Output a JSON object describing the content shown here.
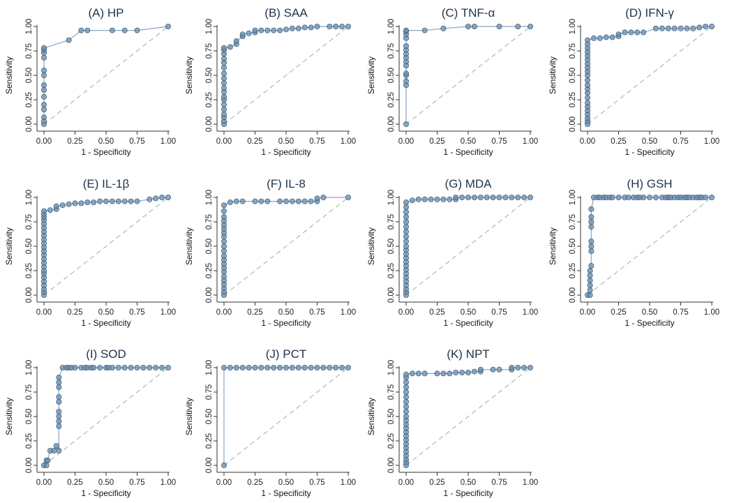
{
  "style": {
    "line_color": "#8aa5bf",
    "marker_fill": "#6b8fae",
    "marker_edge": "#3f5f7f",
    "diagonal_color": "#8fbfaa",
    "title_color": "#1f3349"
  },
  "chart_data": [
    {
      "type": "line",
      "title": "(A) HP",
      "xlabel": "1 - Specificity",
      "ylabel": "Sensitivity",
      "xlim": [
        0,
        1
      ],
      "ylim": [
        0,
        1
      ],
      "xticks": [
        "0.00",
        "0.25",
        "0.50",
        "0.75",
        "1.00"
      ],
      "yticks": [
        "0.00",
        "0.25",
        "0.50",
        "0.75",
        "1.00"
      ],
      "x": [
        0,
        0,
        0,
        0,
        0,
        0,
        0,
        0,
        0,
        0,
        0,
        0,
        0,
        0,
        0.2,
        0.3,
        0.35,
        0.55,
        0.65,
        0.75,
        1.0
      ],
      "y": [
        0,
        0.03,
        0.07,
        0.15,
        0.2,
        0.28,
        0.35,
        0.4,
        0.5,
        0.55,
        0.68,
        0.73,
        0.76,
        0.78,
        0.86,
        0.96,
        0.96,
        0.96,
        0.96,
        0.96,
        1.0
      ]
    },
    {
      "type": "line",
      "title": "(B) SAA",
      "xlabel": "1 - Specificity",
      "ylabel": "Sensitivity",
      "xlim": [
        0,
        1
      ],
      "ylim": [
        0,
        1
      ],
      "xticks": [
        "0.00",
        "0.25",
        "0.50",
        "0.75",
        "1.00"
      ],
      "yticks": [
        "0.00",
        "0.25",
        "0.50",
        "0.75",
        "1.00"
      ],
      "x": [
        0,
        0,
        0,
        0,
        0,
        0,
        0,
        0,
        0,
        0,
        0,
        0,
        0,
        0,
        0,
        0,
        0,
        0,
        0,
        0.05,
        0.1,
        0.1,
        0.15,
        0.15,
        0.2,
        0.25,
        0.25,
        0.3,
        0.35,
        0.4,
        0.45,
        0.5,
        0.55,
        0.6,
        0.65,
        0.7,
        0.75,
        0.85,
        0.9,
        0.95,
        1.0
      ],
      "y": [
        0,
        0.03,
        0.07,
        0.1,
        0.15,
        0.2,
        0.25,
        0.28,
        0.33,
        0.37,
        0.42,
        0.47,
        0.52,
        0.58,
        0.63,
        0.67,
        0.72,
        0.76,
        0.78,
        0.79,
        0.82,
        0.85,
        0.9,
        0.92,
        0.93,
        0.94,
        0.96,
        0.96,
        0.96,
        0.96,
        0.96,
        0.97,
        0.98,
        0.98,
        0.99,
        0.99,
        1.0,
        1.0,
        1.0,
        1.0,
        1.0
      ]
    },
    {
      "type": "line",
      "title": "(C) TNF-α",
      "xlabel": "1 - Specificity",
      "ylabel": "Sensitivity",
      "xlim": [
        0,
        1
      ],
      "ylim": [
        0,
        1
      ],
      "xticks": [
        "0.00",
        "0.25",
        "0.50",
        "0.75",
        "1.00"
      ],
      "yticks": [
        "0.00",
        "0.25",
        "0.50",
        "0.75",
        "1.00"
      ],
      "x": [
        0,
        0,
        0,
        0,
        0,
        0,
        0,
        0,
        0,
        0,
        0,
        0,
        0,
        0,
        0,
        0.15,
        0.3,
        0.5,
        0.55,
        0.75,
        0.9,
        1.0
      ],
      "y": [
        0,
        0.4,
        0.44,
        0.5,
        0.52,
        0.6,
        0.64,
        0.68,
        0.72,
        0.76,
        0.8,
        0.88,
        0.92,
        0.95,
        0.96,
        0.96,
        0.98,
        1.0,
        1.0,
        1.0,
        1.0,
        1.0
      ]
    },
    {
      "type": "line",
      "title": "(D) IFN-γ",
      "xlabel": "1 - Specificity",
      "ylabel": "Sensitivity",
      "xlim": [
        0,
        1
      ],
      "ylim": [
        0,
        1
      ],
      "xticks": [
        "0.00",
        "0.25",
        "0.50",
        "0.75",
        "1.00"
      ],
      "yticks": [
        "0.00",
        "0.25",
        "0.50",
        "0.75",
        "1.00"
      ],
      "x": [
        0,
        0,
        0,
        0,
        0,
        0,
        0,
        0,
        0,
        0,
        0,
        0,
        0,
        0,
        0,
        0,
        0,
        0,
        0,
        0,
        0,
        0,
        0.05,
        0.1,
        0.15,
        0.2,
        0.25,
        0.25,
        0.3,
        0.35,
        0.4,
        0.45,
        0.55,
        0.6,
        0.65,
        0.7,
        0.75,
        0.8,
        0.85,
        0.9,
        0.95,
        1.0
      ],
      "y": [
        0,
        0.03,
        0.06,
        0.1,
        0.14,
        0.18,
        0.22,
        0.27,
        0.32,
        0.36,
        0.4,
        0.45,
        0.5,
        0.54,
        0.58,
        0.62,
        0.66,
        0.7,
        0.74,
        0.78,
        0.82,
        0.86,
        0.88,
        0.88,
        0.89,
        0.89,
        0.9,
        0.92,
        0.94,
        0.94,
        0.94,
        0.94,
        0.98,
        0.98,
        0.98,
        0.98,
        0.98,
        0.98,
        0.98,
        0.99,
        1.0,
        1.0
      ]
    },
    {
      "type": "line",
      "title": "(E) IL-1β",
      "xlabel": "1 - Specificity",
      "ylabel": "Sensitivity",
      "xlim": [
        0,
        1
      ],
      "ylim": [
        0,
        1
      ],
      "xticks": [
        "0.00",
        "0.25",
        "0.50",
        "0.75",
        "1.00"
      ],
      "yticks": [
        "0.00",
        "0.25",
        "0.50",
        "0.75",
        "1.00"
      ],
      "x": [
        0,
        0,
        0,
        0,
        0,
        0,
        0,
        0,
        0,
        0,
        0,
        0,
        0,
        0,
        0,
        0,
        0,
        0,
        0,
        0,
        0,
        0,
        0,
        0,
        0.05,
        0.1,
        0.1,
        0.15,
        0.2,
        0.25,
        0.3,
        0.35,
        0.4,
        0.45,
        0.5,
        0.55,
        0.6,
        0.65,
        0.7,
        0.75,
        0.85,
        0.9,
        0.95,
        1.0
      ],
      "y": [
        0,
        0.03,
        0.06,
        0.1,
        0.14,
        0.18,
        0.22,
        0.25,
        0.29,
        0.33,
        0.37,
        0.41,
        0.45,
        0.49,
        0.53,
        0.57,
        0.61,
        0.65,
        0.69,
        0.73,
        0.77,
        0.8,
        0.83,
        0.86,
        0.87,
        0.88,
        0.91,
        0.92,
        0.93,
        0.94,
        0.94,
        0.95,
        0.95,
        0.96,
        0.96,
        0.96,
        0.96,
        0.96,
        0.96,
        0.96,
        0.98,
        0.99,
        1.0,
        1.0
      ]
    },
    {
      "type": "line",
      "title": "(F) IL-8",
      "xlabel": "1 - Specificity",
      "ylabel": "Sensitivity",
      "xlim": [
        0,
        1
      ],
      "ylim": [
        0,
        1
      ],
      "xticks": [
        "0.00",
        "0.25",
        "0.50",
        "0.75",
        "1.00"
      ],
      "yticks": [
        "0.00",
        "0.25",
        "0.50",
        "0.75",
        "1.00"
      ],
      "x": [
        0,
        0,
        0,
        0,
        0,
        0,
        0,
        0,
        0,
        0,
        0,
        0,
        0,
        0,
        0,
        0,
        0,
        0,
        0,
        0,
        0,
        0,
        0.05,
        0.1,
        0.15,
        0.25,
        0.3,
        0.35,
        0.45,
        0.5,
        0.55,
        0.6,
        0.65,
        0.7,
        0.75,
        0.75,
        0.8,
        1.0
      ],
      "y": [
        0,
        0.03,
        0.07,
        0.11,
        0.15,
        0.19,
        0.24,
        0.28,
        0.32,
        0.36,
        0.4,
        0.45,
        0.5,
        0.55,
        0.6,
        0.64,
        0.68,
        0.72,
        0.76,
        0.8,
        0.86,
        0.92,
        0.95,
        0.96,
        0.96,
        0.96,
        0.96,
        0.96,
        0.96,
        0.96,
        0.96,
        0.96,
        0.96,
        0.96,
        0.96,
        0.99,
        1.0,
        1.0
      ]
    },
    {
      "type": "line",
      "title": "(G) MDA",
      "xlabel": "1 - Specificity",
      "ylabel": "Sensitivity",
      "xlim": [
        0,
        1
      ],
      "ylim": [
        0,
        1
      ],
      "xticks": [
        "0.00",
        "0.25",
        "0.50",
        "0.75",
        "1.00"
      ],
      "yticks": [
        "0.00",
        "0.25",
        "0.50",
        "0.75",
        "1.00"
      ],
      "x": [
        0,
        0,
        0,
        0,
        0,
        0,
        0,
        0,
        0,
        0,
        0,
        0,
        0,
        0,
        0,
        0,
        0,
        0,
        0,
        0,
        0,
        0,
        0,
        0.05,
        0.1,
        0.15,
        0.2,
        0.25,
        0.3,
        0.35,
        0.4,
        0.4,
        0.45,
        0.5,
        0.55,
        0.6,
        0.65,
        0.7,
        0.75,
        0.8,
        0.85,
        0.9,
        0.95,
        1.0
      ],
      "y": [
        0,
        0.03,
        0.06,
        0.1,
        0.14,
        0.18,
        0.22,
        0.26,
        0.3,
        0.34,
        0.38,
        0.42,
        0.46,
        0.5,
        0.55,
        0.6,
        0.65,
        0.7,
        0.75,
        0.8,
        0.85,
        0.9,
        0.95,
        0.97,
        0.98,
        0.98,
        0.98,
        0.98,
        0.98,
        0.98,
        0.98,
        1.0,
        1.0,
        1.0,
        1.0,
        1.0,
        1.0,
        1.0,
        1.0,
        1.0,
        1.0,
        1.0,
        1.0,
        1.0
      ]
    },
    {
      "type": "line",
      "title": "(H) GSH",
      "xlabel": "1 - Specificity",
      "ylabel": "Sensitivity",
      "xlim": [
        0,
        1
      ],
      "ylim": [
        0,
        1
      ],
      "xticks": [
        "0.00",
        "0.25",
        "0.50",
        "0.75",
        "1.00"
      ],
      "yticks": [
        "0.00",
        "0.25",
        "0.50",
        "0.75",
        "1.00"
      ],
      "x": [
        0,
        0.02,
        0.02,
        0.02,
        0.02,
        0.02,
        0.02,
        0.03,
        0.03,
        0.03,
        0.03,
        0.03,
        0.03,
        0.03,
        0.03,
        0.05,
        0.08,
        0.1,
        0.13,
        0.15,
        0.18,
        0.2,
        0.25,
        0.3,
        0.33,
        0.37,
        0.4,
        0.42,
        0.45,
        0.5,
        0.55,
        0.6,
        0.63,
        0.65,
        0.67,
        0.7,
        0.73,
        0.75,
        0.78,
        0.8,
        0.82,
        0.85,
        0.88,
        0.9,
        0.92,
        0.95,
        1.0
      ],
      "y": [
        0,
        0,
        0.05,
        0.1,
        0.15,
        0.2,
        0.25,
        0.3,
        0.45,
        0.5,
        0.55,
        0.7,
        0.75,
        0.8,
        0.88,
        1.0,
        1.0,
        1.0,
        1.0,
        1.0,
        1.0,
        1.0,
        1.0,
        1.0,
        1.0,
        1.0,
        1.0,
        1.0,
        1.0,
        1.0,
        1.0,
        1.0,
        1.0,
        1.0,
        1.0,
        1.0,
        1.0,
        1.0,
        1.0,
        1.0,
        1.0,
        1.0,
        1.0,
        1.0,
        1.0,
        1.0,
        1.0
      ]
    },
    {
      "type": "line",
      "title": "(I) SOD",
      "xlabel": "1 - Specificity",
      "ylabel": "Sensitivity",
      "xlim": [
        0,
        1
      ],
      "ylim": [
        0,
        1
      ],
      "xticks": [
        "0.00",
        "0.25",
        "0.50",
        "0.75",
        "1.00"
      ],
      "yticks": [
        "0.00",
        "0.25",
        "0.50",
        "0.75",
        "1.00"
      ],
      "x": [
        0,
        0.02,
        0.02,
        0.03,
        0.05,
        0.08,
        0.1,
        0.12,
        0.12,
        0.12,
        0.12,
        0.12,
        0.12,
        0.12,
        0.12,
        0.12,
        0.12,
        0.15,
        0.18,
        0.2,
        0.22,
        0.25,
        0.3,
        0.33,
        0.35,
        0.38,
        0.4,
        0.45,
        0.5,
        0.52,
        0.55,
        0.6,
        0.65,
        0.7,
        0.75,
        0.8,
        0.85,
        0.9,
        0.95,
        1.0
      ],
      "y": [
        0,
        0,
        0.05,
        0.05,
        0.15,
        0.15,
        0.2,
        0.15,
        0.4,
        0.45,
        0.5,
        0.55,
        0.65,
        0.7,
        0.8,
        0.85,
        0.9,
        1.0,
        1.0,
        1.0,
        1.0,
        1.0,
        1.0,
        1.0,
        1.0,
        1.0,
        1.0,
        1.0,
        1.0,
        1.0,
        1.0,
        1.0,
        1.0,
        1.0,
        1.0,
        1.0,
        1.0,
        1.0,
        1.0,
        1.0
      ]
    },
    {
      "type": "line",
      "title": "(J) PCT",
      "xlabel": "1 - Specificity",
      "ylabel": "Sensitivity",
      "xlim": [
        0,
        1
      ],
      "ylim": [
        0,
        1
      ],
      "xticks": [
        "0.00",
        "0.25",
        "0.50",
        "0.75",
        "1.00"
      ],
      "yticks": [
        "0.00",
        "0.25",
        "0.50",
        "0.75",
        "1.00"
      ],
      "x": [
        0,
        0,
        0.05,
        0.1,
        0.15,
        0.2,
        0.25,
        0.3,
        0.35,
        0.4,
        0.45,
        0.5,
        0.55,
        0.6,
        0.65,
        0.7,
        0.75,
        0.8,
        0.85,
        0.9,
        0.95,
        1.0
      ],
      "y": [
        0,
        1.0,
        1.0,
        1.0,
        1.0,
        1.0,
        1.0,
        1.0,
        1.0,
        1.0,
        1.0,
        1.0,
        1.0,
        1.0,
        1.0,
        1.0,
        1.0,
        1.0,
        1.0,
        1.0,
        1.0,
        1.0
      ]
    },
    {
      "type": "line",
      "title": "(K) NPT",
      "xlabel": "1 - Specificity",
      "ylabel": "Sensitivity",
      "xlim": [
        0,
        1
      ],
      "ylim": [
        0,
        1
      ],
      "xticks": [
        "0.00",
        "0.25",
        "0.50",
        "0.75",
        "1.00"
      ],
      "yticks": [
        "0.00",
        "0.25",
        "0.50",
        "0.75",
        "1.00"
      ],
      "x": [
        0,
        0,
        0,
        0,
        0,
        0,
        0,
        0,
        0,
        0,
        0,
        0,
        0,
        0,
        0,
        0,
        0,
        0,
        0,
        0,
        0,
        0,
        0,
        0.05,
        0.1,
        0.15,
        0.25,
        0.3,
        0.35,
        0.4,
        0.45,
        0.5,
        0.55,
        0.6,
        0.6,
        0.7,
        0.75,
        0.85,
        0.85,
        0.9,
        0.95,
        1.0
      ],
      "y": [
        0,
        0.03,
        0.06,
        0.1,
        0.14,
        0.18,
        0.22,
        0.26,
        0.3,
        0.34,
        0.38,
        0.42,
        0.46,
        0.5,
        0.55,
        0.6,
        0.65,
        0.7,
        0.75,
        0.8,
        0.85,
        0.9,
        0.93,
        0.94,
        0.94,
        0.94,
        0.94,
        0.94,
        0.94,
        0.95,
        0.95,
        0.95,
        0.96,
        0.96,
        0.98,
        0.98,
        0.98,
        0.98,
        1.0,
        1.0,
        1.0,
        1.0
      ]
    }
  ]
}
